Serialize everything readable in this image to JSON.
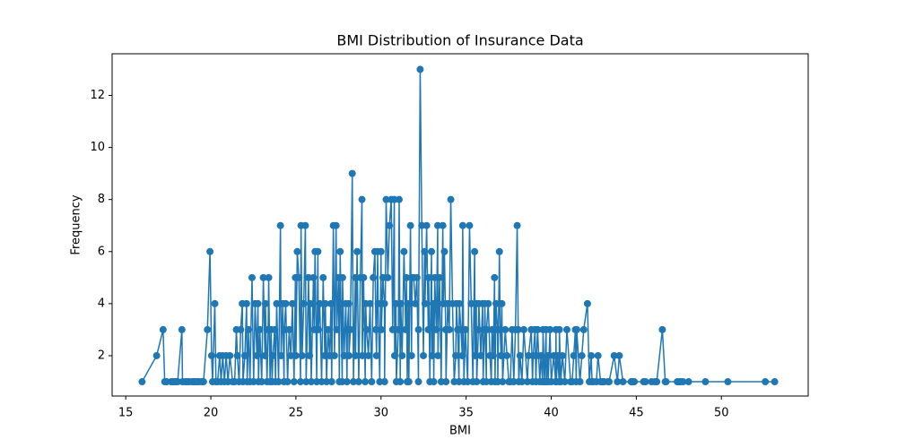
{
  "chart_data": {
    "type": "line",
    "title": "BMI Distribution of Insurance Data",
    "x_label": "BMI",
    "y_label": "Frequency",
    "color": "#1f77b4",
    "marker": true,
    "xlim": [
      14.2,
      55.1
    ],
    "ylim": [
      0.45,
      13.6
    ],
    "xticks": [
      15,
      20,
      25,
      30,
      35,
      40,
      45,
      50
    ],
    "yticks": [
      2,
      4,
      6,
      8,
      10,
      12
    ],
    "x": [
      15.96,
      16.815,
      17.195,
      17.29,
      17.385,
      17.4,
      17.67,
      17.765,
      17.8,
      17.86,
      17.955,
      18.05,
      18.3,
      18.335,
      18.5,
      18.6,
      18.715,
      18.905,
      19,
      19.095,
      19.19,
      19.3,
      19.475,
      19.57,
      19.8,
      19.95,
      20.045,
      20.1,
      20.235,
      20.3,
      20.4,
      20.52,
      20.6,
      20.7,
      20.8,
      20.9,
      21.01,
      21.12,
      21.28,
      21.4,
      21.5,
      21.56,
      21.66,
      21.755,
      21.85,
      21.89,
      22,
      22.1,
      22.135,
      22.22,
      22.3,
      22.42,
      22.515,
      22.6,
      22.705,
      22.77,
      22.8,
      22.88,
      22.99,
      23.085,
      23.18,
      23.21,
      23.3,
      23.37,
      23.4,
      23.48,
      23.54,
      23.6,
      23.65,
      23.75,
      23.8,
      23.87,
      23.98,
      24.09,
      24.13,
      24.225,
      24.3,
      24.32,
      24.4,
      24.51,
      24.6,
      24.7,
      24.795,
      24.89,
      24.97,
      25,
      25.08,
      25.175,
      25.27,
      25.3,
      25.365,
      25.46,
      25.555,
      25.6,
      25.74,
      25.8,
      25.84,
      25.9,
      26.03,
      26.07,
      26.125,
      26.22,
      26.29,
      26.315,
      26.4,
      26.51,
      26.6,
      26.695,
      26.73,
      26.8,
      26.885,
      26.98,
      27.06,
      27.1,
      27.2,
      27.265,
      27.36,
      27.4,
      27.5,
      27.55,
      27.6,
      27.645,
      27.72,
      27.74,
      27.83,
      27.93,
      28,
      28.025,
      28.1,
      28.12,
      28.2,
      28.31,
      28.38,
      28.49,
      28.5,
      28.595,
      28.69,
      28.785,
      28.88,
      28.9,
      28.975,
      29.07,
      29.1,
      29.15,
      29.26,
      29.355,
      29.45,
      29.545,
      29.64,
      29.7,
      29.735,
      29.8,
      29.83,
      29.925,
      30,
      30.02,
      30.115,
      30.2,
      30.21,
      30.3,
      30.4,
      30.495,
      30.6,
      30.685,
      30.78,
      30.8,
      30.875,
      30.9,
      31.02,
      31.065,
      31.13,
      31.16,
      31.24,
      31.35,
      31.445,
      31.5,
      31.54,
      31.6,
      31.635,
      31.73,
      31.79,
      31.825,
      31.92,
      32.01,
      32.11,
      32.2,
      32.205,
      32.3,
      32.395,
      32.49,
      32.56,
      32.585,
      32.68,
      32.775,
      32.8,
      32.87,
      32.965,
      33,
      33.06,
      33.1,
      33.155,
      33.25,
      33.33,
      33.345,
      33.44,
      33.535,
      33.63,
      33.66,
      33.725,
      33.8,
      33.82,
      33.915,
      34.01,
      34.1,
      34.2,
      34.3,
      34.39,
      34.43,
      34.5,
      34.58,
      34.6,
      34.7,
      34.77,
      34.8,
      34.87,
      34.96,
      35.09,
      35.2,
      35.3,
      35.4,
      35.5,
      35.53,
      35.6,
      35.625,
      35.72,
      35.75,
      35.86,
      35.97,
      36,
      36.08,
      36.1,
      36.19,
      36.2,
      36.3,
      36.4,
      36.48,
      36.52,
      36.6,
      36.67,
      36.7,
      36.76,
      36.85,
      36.86,
      36.955,
      37,
      37.05,
      37.1,
      37.145,
      37.3,
      37.4,
      37.51,
      37.6,
      37.7,
      37.8,
      37.9,
      38,
      38.06,
      38.095,
      38.17,
      38.28,
      38.39,
      38.6,
      38.665,
      38.83,
      38.9,
      38.94,
      39.05,
      39.1,
      39.14,
      39.2,
      39.33,
      39.4,
      39.49,
      39.52,
      39.6,
      39.7,
      39.71,
      39.8,
      39.82,
      39.93,
      40,
      40.15,
      40.26,
      40.28,
      40.3,
      40.375,
      40.47,
      40.48,
      40.565,
      40.66,
      40.8,
      40.92,
      41.14,
      41.23,
      41.325,
      41.42,
      41.47,
      41.5,
      41.69,
      41.8,
      41.91,
      42.13,
      42.24,
      42.35,
      42.4,
      42.46,
      42.655,
      42.75,
      42.9,
      42.94,
      43.01,
      43.12,
      43.34,
      43.4,
      43.7,
      43.89,
      44,
      44.22,
      44.7,
      44.745,
      44.77,
      44.88,
      45.43,
      45.54,
      45.9,
      46.09,
      46.2,
      46.53,
      46.7,
      46.75,
      47.41,
      47.52,
      47.6,
      47.74,
      48.07,
      49.06,
      50.38,
      52.58,
      53.13
    ],
    "values": [
      1,
      2,
      3,
      1,
      1,
      1,
      1,
      1,
      1,
      1,
      1,
      1,
      3,
      1,
      1,
      1,
      1,
      1,
      1,
      1,
      1,
      1,
      1,
      1,
      3,
      6,
      2,
      1,
      4,
      1,
      1,
      2,
      1,
      2,
      1,
      2,
      1,
      2,
      1,
      1,
      3,
      2,
      1,
      3,
      4,
      1,
      2,
      4,
      1,
      3,
      1,
      5,
      1,
      4,
      2,
      4,
      1,
      3,
      1,
      5,
      2,
      4,
      1,
      3,
      5,
      1,
      3,
      1,
      2,
      3,
      1,
      4,
      1,
      7,
      2,
      4,
      1,
      3,
      4,
      1,
      3,
      2,
      4,
      1,
      5,
      2,
      6,
      5,
      1,
      7,
      2,
      4,
      7,
      1,
      5,
      2,
      4,
      1,
      5,
      3,
      6,
      1,
      6,
      3,
      4,
      1,
      5,
      2,
      4,
      1,
      3,
      2,
      4,
      1,
      7,
      2,
      7,
      3,
      5,
      1,
      6,
      4,
      1,
      5,
      2,
      4,
      1,
      3,
      4,
      2,
      3,
      9,
      1,
      5,
      2,
      6,
      1,
      5,
      8,
      2,
      5,
      1,
      4,
      3,
      2,
      4,
      1,
      5,
      6,
      3,
      2,
      6,
      4,
      1,
      6,
      3,
      5,
      4,
      1,
      8,
      5,
      7,
      8,
      3,
      8,
      2,
      4,
      1,
      3,
      8,
      1,
      4,
      2,
      6,
      3,
      5,
      1,
      4,
      1,
      7,
      2,
      5,
      5,
      4,
      5,
      1,
      3,
      13,
      7,
      2,
      6,
      4,
      7,
      3,
      5,
      1,
      6,
      2,
      4,
      1,
      5,
      3,
      7,
      2,
      5,
      1,
      7,
      4,
      6,
      3,
      1,
      4,
      3,
      8,
      4,
      1,
      2,
      4,
      3,
      1,
      4,
      3,
      2,
      7,
      1,
      3,
      1,
      7,
      4,
      1,
      6,
      2,
      4,
      1,
      3,
      4,
      2,
      4,
      1,
      3,
      4,
      1,
      3,
      4,
      2,
      1,
      3,
      2,
      5,
      1,
      4,
      3,
      1,
      6,
      3,
      2,
      4,
      1,
      3,
      2,
      1,
      1,
      3,
      1,
      3,
      7,
      3,
      1,
      2,
      1,
      3,
      1,
      2,
      3,
      1,
      2,
      3,
      1,
      2,
      3,
      1,
      2,
      1,
      3,
      1,
      3,
      1,
      2,
      1,
      3,
      1,
      2,
      1,
      3,
      1,
      2,
      1,
      3,
      1,
      2,
      1,
      3,
      1,
      1,
      2,
      3,
      1,
      3,
      1,
      2,
      3,
      4,
      1,
      2,
      1,
      1,
      1,
      2,
      1,
      1,
      1,
      1,
      1,
      1,
      2,
      1,
      2,
      1,
      1,
      1,
      1,
      1,
      1,
      1,
      1,
      1,
      1,
      3,
      1,
      1,
      1,
      1,
      1,
      1,
      1,
      1,
      1,
      1,
      1
    ]
  }
}
